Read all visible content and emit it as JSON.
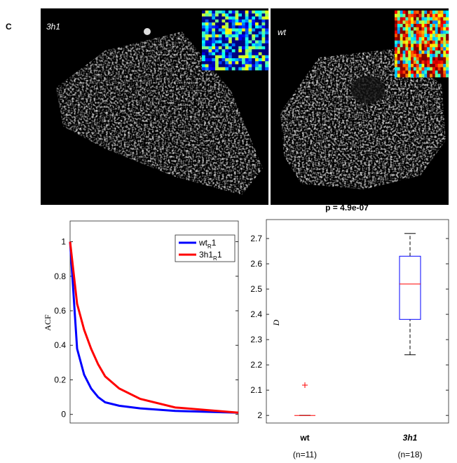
{
  "panel_label": "C",
  "images": [
    {
      "label": "3h1"
    },
    {
      "label": "wt"
    }
  ],
  "chart_data": [
    {
      "type": "line",
      "y_label": "ACF",
      "x": [
        0,
        1,
        2,
        3,
        4,
        5,
        7,
        10,
        15,
        24
      ],
      "xlim": [
        0,
        24
      ],
      "ylim": [
        -0.05,
        1.12
      ],
      "yticks": [
        0,
        0.2,
        0.4,
        0.6,
        0.8,
        1
      ],
      "legend": "upper right",
      "series": [
        {
          "name": "wt",
          "subscript": "R",
          "suffix": "1",
          "color": "#0000ff",
          "values": [
            1,
            0.38,
            0.23,
            0.15,
            0.1,
            0.07,
            0.05,
            0.035,
            0.02,
            0.01
          ]
        },
        {
          "name": "3h1",
          "subscript": "R",
          "suffix": "1",
          "color": "#ff0000",
          "values": [
            1,
            0.64,
            0.49,
            0.38,
            0.29,
            0.22,
            0.15,
            0.09,
            0.04,
            0.01
          ]
        }
      ]
    },
    {
      "type": "box",
      "title": "p = 4.9e-07",
      "y_label": "D",
      "categories": [
        "wt",
        "3h1"
      ],
      "category_notes": [
        "(n=11)",
        "(n=18)"
      ],
      "ylim": [
        1.97,
        2.775
      ],
      "yticks": [
        2,
        2.1,
        2.2,
        2.3,
        2.4,
        2.5,
        2.6,
        2.7
      ],
      "box_color": "#0000ff",
      "median_color": "#ff0000",
      "whisker_color": "#000000",
      "outlier_color": "#ff0000",
      "stats": [
        {
          "min": 2.0,
          "q1": 2.0,
          "median": 2.0,
          "q3": 2.0,
          "max": 2.0,
          "outliers": [
            2.12
          ]
        },
        {
          "min": 2.24,
          "q1": 2.38,
          "median": 2.52,
          "q3": 2.63,
          "max": 2.72,
          "outliers": []
        }
      ]
    }
  ]
}
